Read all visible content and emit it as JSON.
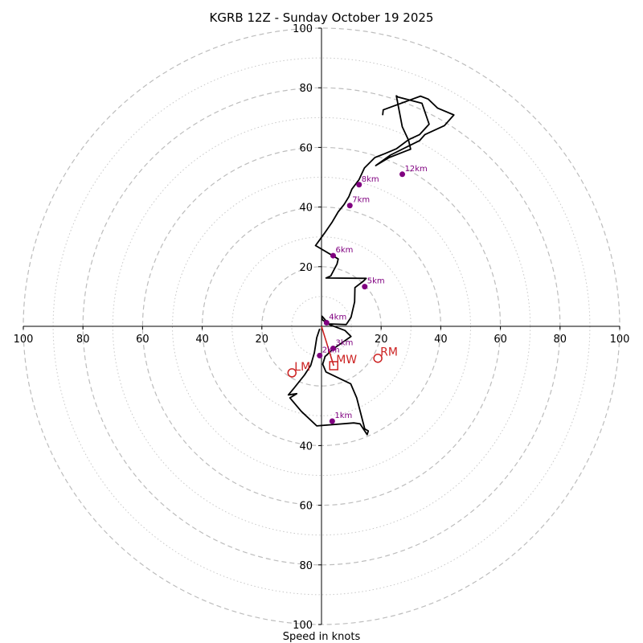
{
  "chart_data": {
    "type": "hodograph",
    "title": "KGRB 12Z - Sunday October 19 2025",
    "xlabel": "Speed in knots",
    "units": "knots",
    "axis_range": [
      -100,
      100
    ],
    "dashed_rings": [
      20,
      40,
      60,
      80,
      100
    ],
    "dotted_rings": [
      10,
      30,
      50,
      70,
      90
    ],
    "x_tick_labels": [
      {
        "value": -100,
        "text": "100"
      },
      {
        "value": -80,
        "text": "80"
      },
      {
        "value": -60,
        "text": "60"
      },
      {
        "value": -40,
        "text": "40"
      },
      {
        "value": -20,
        "text": "20"
      },
      {
        "value": 20,
        "text": "20"
      },
      {
        "value": 40,
        "text": "40"
      },
      {
        "value": 60,
        "text": "60"
      },
      {
        "value": 80,
        "text": "80"
      },
      {
        "value": 100,
        "text": "100"
      }
    ],
    "y_tick_labels": [
      {
        "value": 100,
        "text": "100"
      },
      {
        "value": 80,
        "text": "80"
      },
      {
        "value": 60,
        "text": "60"
      },
      {
        "value": 40,
        "text": "40"
      },
      {
        "value": 20,
        "text": "20"
      },
      {
        "value": -40,
        "text": "40"
      },
      {
        "value": -60,
        "text": "60"
      },
      {
        "value": -80,
        "text": "80"
      },
      {
        "value": -100,
        "text": "100"
      }
    ],
    "trace": {
      "color": "#000000",
      "u": [
        -0.6,
        -1.6,
        -2.4,
        -3.6,
        -5.7,
        -9.1,
        -11.1,
        -8.3,
        -10.6,
        -6.8,
        -1.6,
        10.8,
        12.9,
        15.3,
        15.7,
        14.5,
        11.8,
        9.8,
        1.5,
        0.4,
        1.2,
        3.9,
        9.9,
        7.9,
        2.6,
        0.8,
        0.2,
        0.2,
        2.4,
        8.3,
        9.9,
        11.1,
        11.2,
        14.1,
        15.0,
        1.5,
        3.1,
        5.2,
        5.6,
        -2.0,
        1.0,
        3.6,
        5.6,
        7.6,
        9.2,
        10.2,
        12.6,
        14.4,
        17.9,
        21.2,
        25.2,
        29.2,
        32.9,
        36.1,
        33.7,
        25.7,
        25.1,
        27.1,
        29.2,
        29.9,
        22.7,
        18.2,
        23.1,
        32.9,
        34.7,
        41.2,
        44.4,
        38.9,
        35.8,
        33.2,
        20.7,
        20.5
      ],
      "v": [
        -0.8,
        -3.8,
        -8.9,
        -13.1,
        -16.3,
        -20.6,
        -23.0,
        -22.6,
        -24.0,
        -28.5,
        -33.4,
        -32.4,
        -32.7,
        -36.3,
        -35.1,
        -34.4,
        -24.0,
        -19.3,
        -15.3,
        -12.7,
        -10.1,
        -7.6,
        -3.4,
        -1.4,
        0.6,
        1.8,
        2.3,
        3.4,
        0.8,
        0.6,
        3.0,
        8.2,
        13.0,
        15.2,
        16.1,
        16.2,
        16.9,
        20.9,
        22.6,
        27.1,
        31.2,
        35.0,
        38.4,
        40.9,
        43.5,
        46.0,
        49.2,
        53.1,
        56.6,
        57.9,
        59.6,
        62.6,
        64.3,
        67.8,
        74.8,
        76.9,
        77.3,
        66.9,
        62.4,
        59.4,
        56.6,
        53.9,
        57.4,
        62.3,
        64.3,
        67.3,
        70.9,
        73.2,
        76.2,
        77.2,
        72.6,
        70.8
      ]
    },
    "height_markers": [
      {
        "label": "1km",
        "u": 3.6,
        "v": -31.8
      },
      {
        "label": "2km",
        "u": -0.6,
        "v": -9.8
      },
      {
        "label": "3km",
        "u": 3.9,
        "v": -7.4
      },
      {
        "label": "4km",
        "u": 1.7,
        "v": 1.2
      },
      {
        "label": "5km",
        "u": 14.5,
        "v": 13.3
      },
      {
        "label": "6km",
        "u": 3.9,
        "v": 23.7
      },
      {
        "label": "7km",
        "u": 9.5,
        "v": 40.5
      },
      {
        "label": "8km",
        "u": 12.6,
        "v": 47.5
      },
      {
        "label": "12km",
        "u": 27.1,
        "v": 51.0
      }
    ],
    "marker_color": "#800080",
    "storm_motion": [
      {
        "label": "RM",
        "u": 18.9,
        "v": -10.7,
        "shape": "circle"
      },
      {
        "label": "LM",
        "u": -9.9,
        "v": -15.6,
        "shape": "circle"
      },
      {
        "label": "MW",
        "u": 4.1,
        "v": -13.2,
        "shape": "square"
      }
    ],
    "motion_color": "#cc2222",
    "shear_vector": {
      "u_start": 0,
      "v_start": 0,
      "u_end": 4.1,
      "v_end": -13.2
    }
  }
}
